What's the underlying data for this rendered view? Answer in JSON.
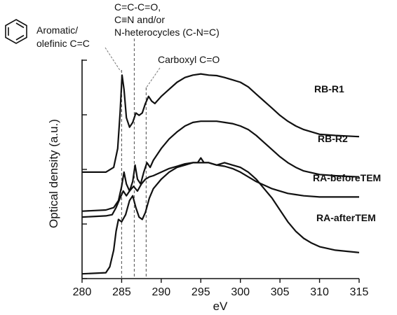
{
  "chart_data": {
    "type": "line",
    "title": "",
    "xlabel": "eV",
    "ylabel": "Optical density (a.u.)",
    "xlim": [
      280,
      315
    ],
    "x_ticks": [
      280,
      285,
      290,
      295,
      300,
      305,
      310,
      315
    ],
    "y_ticks_shown": false,
    "series": [
      {
        "name": "RB-R1",
        "points": [
          [
            280,
            0.45
          ],
          [
            283,
            0.45
          ],
          [
            284,
            0.47
          ],
          [
            284.5,
            0.55
          ],
          [
            284.8,
            0.7
          ],
          [
            285.05,
            0.86
          ],
          [
            285.3,
            0.8
          ],
          [
            285.6,
            0.68
          ],
          [
            286,
            0.64
          ],
          [
            286.4,
            0.66
          ],
          [
            286.8,
            0.7
          ],
          [
            287.2,
            0.69
          ],
          [
            287.6,
            0.7
          ],
          [
            288,
            0.74
          ],
          [
            288.4,
            0.77
          ],
          [
            288.8,
            0.75
          ],
          [
            289.2,
            0.74
          ],
          [
            290,
            0.77
          ],
          [
            291,
            0.8
          ],
          [
            292,
            0.83
          ],
          [
            293,
            0.85
          ],
          [
            294,
            0.86
          ],
          [
            295,
            0.865
          ],
          [
            296,
            0.86
          ],
          [
            297,
            0.858
          ],
          [
            298,
            0.85
          ],
          [
            299,
            0.84
          ],
          [
            300,
            0.83
          ],
          [
            301,
            0.81
          ],
          [
            302,
            0.78
          ],
          [
            303,
            0.75
          ],
          [
            304,
            0.72
          ],
          [
            305,
            0.69
          ],
          [
            306,
            0.665
          ],
          [
            307,
            0.645
          ],
          [
            308,
            0.63
          ],
          [
            310,
            0.61
          ],
          [
            312,
            0.605
          ],
          [
            315,
            0.6
          ]
        ]
      },
      {
        "name": "RB-R2",
        "points": [
          [
            280,
            0.285
          ],
          [
            283,
            0.29
          ],
          [
            284,
            0.3
          ],
          [
            284.6,
            0.33
          ],
          [
            285,
            0.39
          ],
          [
            285.3,
            0.45
          ],
          [
            285.6,
            0.4
          ],
          [
            286,
            0.37
          ],
          [
            286.4,
            0.41
          ],
          [
            286.7,
            0.48
          ],
          [
            287,
            0.42
          ],
          [
            287.4,
            0.4
          ],
          [
            287.8,
            0.45
          ],
          [
            288.2,
            0.49
          ],
          [
            288.6,
            0.47
          ],
          [
            289,
            0.5
          ],
          [
            290,
            0.55
          ],
          [
            291,
            0.59
          ],
          [
            292,
            0.62
          ],
          [
            293,
            0.645
          ],
          [
            294,
            0.66
          ],
          [
            295,
            0.665
          ],
          [
            296,
            0.665
          ],
          [
            297,
            0.665
          ],
          [
            298,
            0.66
          ],
          [
            299,
            0.655
          ],
          [
            300,
            0.645
          ],
          [
            301,
            0.63
          ],
          [
            302,
            0.605
          ],
          [
            303,
            0.575
          ],
          [
            304,
            0.545
          ],
          [
            305,
            0.515
          ],
          [
            306,
            0.49
          ],
          [
            307,
            0.47
          ],
          [
            308,
            0.455
          ],
          [
            310,
            0.44
          ],
          [
            312,
            0.435
          ],
          [
            315,
            0.43
          ]
        ]
      },
      {
        "name": "RA-beforeTEM",
        "points": [
          [
            280,
            0.26
          ],
          [
            283,
            0.265
          ],
          [
            283.8,
            0.27
          ],
          [
            284.3,
            0.3
          ],
          [
            284.8,
            0.34
          ],
          [
            285.2,
            0.37
          ],
          [
            285.6,
            0.35
          ],
          [
            286,
            0.37
          ],
          [
            286.5,
            0.39
          ],
          [
            287,
            0.37
          ],
          [
            287.5,
            0.4
          ],
          [
            288,
            0.42
          ],
          [
            288.5,
            0.43
          ],
          [
            289,
            0.435
          ],
          [
            290,
            0.45
          ],
          [
            291,
            0.465
          ],
          [
            292,
            0.475
          ],
          [
            293,
            0.485
          ],
          [
            294,
            0.49
          ],
          [
            294.6,
            0.49
          ],
          [
            295,
            0.51
          ],
          [
            295.4,
            0.49
          ],
          [
            296,
            0.49
          ],
          [
            297,
            0.48
          ],
          [
            298,
            0.475
          ],
          [
            299,
            0.465
          ],
          [
            300,
            0.45
          ],
          [
            301,
            0.43
          ],
          [
            302,
            0.41
          ],
          [
            303,
            0.395
          ],
          [
            304,
            0.38
          ],
          [
            305,
            0.37
          ],
          [
            306,
            0.36
          ],
          [
            307,
            0.355
          ],
          [
            308,
            0.35
          ],
          [
            310,
            0.345
          ],
          [
            312,
            0.345
          ],
          [
            315,
            0.345
          ]
        ]
      },
      {
        "name": "RA-afterTEM",
        "points": [
          [
            280,
            0.02
          ],
          [
            283,
            0.025
          ],
          [
            283.5,
            0.05
          ],
          [
            284,
            0.12
          ],
          [
            284.3,
            0.2
          ],
          [
            284.6,
            0.25
          ],
          [
            285,
            0.24
          ],
          [
            285.5,
            0.27
          ],
          [
            286,
            0.33
          ],
          [
            286.4,
            0.35
          ],
          [
            286.8,
            0.3
          ],
          [
            287.2,
            0.26
          ],
          [
            287.6,
            0.25
          ],
          [
            288,
            0.28
          ],
          [
            288.5,
            0.34
          ],
          [
            289,
            0.38
          ],
          [
            290,
            0.42
          ],
          [
            291,
            0.45
          ],
          [
            292,
            0.47
          ],
          [
            293,
            0.48
          ],
          [
            294,
            0.49
          ],
          [
            295,
            0.49
          ],
          [
            296,
            0.49
          ],
          [
            297,
            0.48
          ],
          [
            298,
            0.49
          ],
          [
            299,
            0.48
          ],
          [
            300,
            0.47
          ],
          [
            301,
            0.45
          ],
          [
            302,
            0.42
          ],
          [
            303,
            0.38
          ],
          [
            304,
            0.34
          ],
          [
            305,
            0.29
          ],
          [
            306,
            0.24
          ],
          [
            307,
            0.2
          ],
          [
            308,
            0.17
          ],
          [
            309,
            0.15
          ],
          [
            310,
            0.135
          ],
          [
            312,
            0.12
          ],
          [
            315,
            0.11
          ]
        ]
      }
    ],
    "reference_lines": [
      {
        "x": 285.0,
        "label": "Aromatic/\nolefinic C=C"
      },
      {
        "x": 286.6,
        "label": "C=C-C=O,\nC≡N and/or\nN-heterocycles (C-N=C)"
      },
      {
        "x": 288.1,
        "label": "Carboxyl C=O"
      }
    ],
    "grid": false,
    "legend": "labels beside curves"
  },
  "annotations": {
    "aromatic": [
      "Aromatic/",
      "olefinic C=C"
    ],
    "heterocycles": [
      "C=C-C=O,",
      "C≡N and/or",
      "N-heterocycles (C-N=C)"
    ],
    "carboxyl": "Carboxyl C=O",
    "benzene_icon": "benzene-ring-icon"
  }
}
